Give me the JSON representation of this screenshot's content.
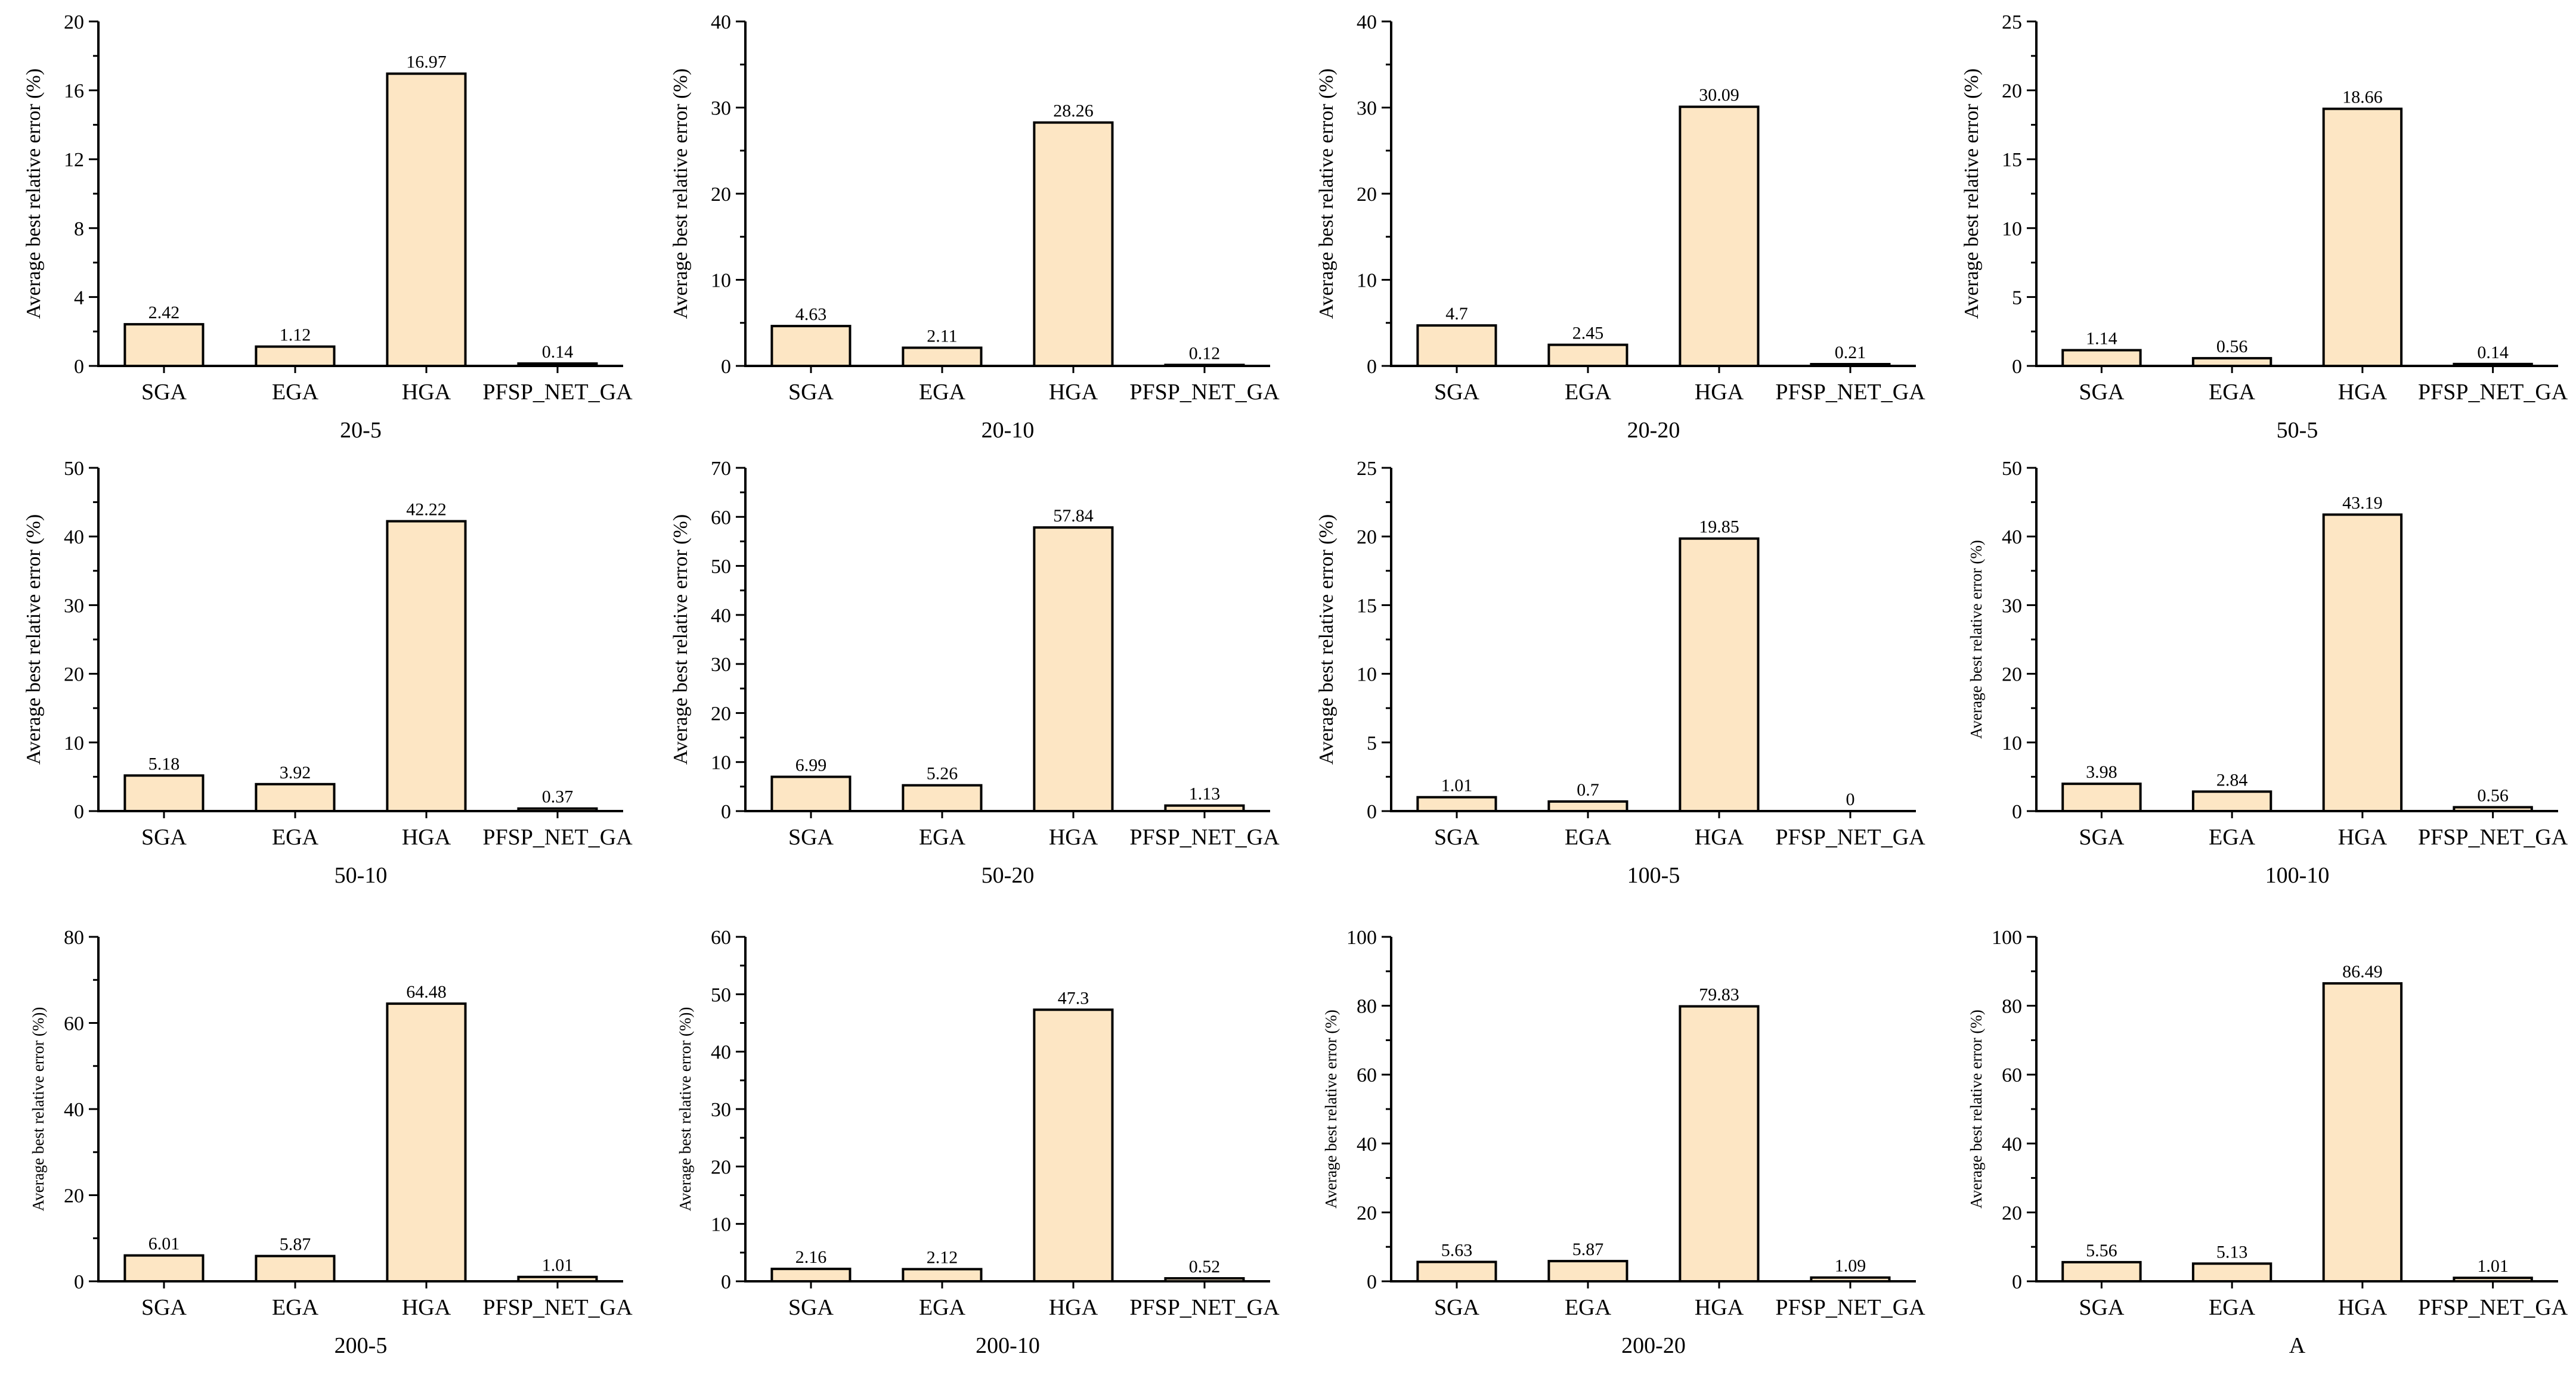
{
  "chart_data": [
    {
      "type": "bar",
      "title": "",
      "xlabel": "20-5",
      "ylabel": "Average best relative error (%)",
      "categories": [
        "SGA",
        "EGA",
        "HGA",
        "PFSP_NET_GA"
      ],
      "values": [
        2.42,
        1.12,
        16.97,
        0.14
      ],
      "value_labels": [
        "2.42",
        "1.12",
        "16.97",
        "0.14"
      ],
      "ylim": [
        0,
        20
      ],
      "yticks": [
        0,
        4,
        8,
        12,
        16,
        20
      ]
    },
    {
      "type": "bar",
      "title": "",
      "xlabel": "20-10",
      "ylabel": "Average best relative error (%)",
      "categories": [
        "SGA",
        "EGA",
        "HGA",
        "PFSP_NET_GA"
      ],
      "values": [
        4.63,
        2.11,
        28.26,
        0.12
      ],
      "value_labels": [
        "4.63",
        "2.11",
        "28.26",
        "0.12"
      ],
      "ylim": [
        0,
        40
      ],
      "yticks": [
        0,
        10,
        20,
        30,
        40
      ]
    },
    {
      "type": "bar",
      "title": "",
      "xlabel": "20-20",
      "ylabel": "Average best relative error (%)",
      "categories": [
        "SGA",
        "EGA",
        "HGA",
        "PFSP_NET_GA"
      ],
      "values": [
        4.7,
        2.45,
        30.09,
        0.21
      ],
      "value_labels": [
        "4.7",
        "2.45",
        "30.09",
        "0.21"
      ],
      "ylim": [
        0,
        40
      ],
      "yticks": [
        0,
        10,
        20,
        30,
        40
      ]
    },
    {
      "type": "bar",
      "title": "",
      "xlabel": "50-5",
      "ylabel": "Average best relative error (%)",
      "categories": [
        "SGA",
        "EGA",
        "HGA",
        "PFSP_NET_GA"
      ],
      "values": [
        1.14,
        0.56,
        18.66,
        0.14
      ],
      "value_labels": [
        "1.14",
        "0.56",
        "18.66",
        "0.14"
      ],
      "ylim": [
        0,
        25
      ],
      "yticks": [
        0,
        5,
        10,
        15,
        20,
        25
      ]
    },
    {
      "type": "bar",
      "title": "",
      "xlabel": "50-10",
      "ylabel": "Average best relative error (%)",
      "categories": [
        "SGA",
        "EGA",
        "HGA",
        "PFSP_NET_GA"
      ],
      "values": [
        5.18,
        3.92,
        42.22,
        0.37
      ],
      "value_labels": [
        "5.18",
        "3.92",
        "42.22",
        "0.37"
      ],
      "ylim": [
        0,
        50
      ],
      "yticks": [
        0,
        10,
        20,
        30,
        40,
        50
      ]
    },
    {
      "type": "bar",
      "title": "",
      "xlabel": "50-20",
      "ylabel": "Average best relative error (%)",
      "categories": [
        "SGA",
        "EGA",
        "HGA",
        "PFSP_NET_GA"
      ],
      "values": [
        6.99,
        5.26,
        57.84,
        1.13
      ],
      "value_labels": [
        "6.99",
        "5.26",
        "57.84",
        "1.13"
      ],
      "ylim": [
        0,
        70
      ],
      "yticks": [
        0,
        10,
        20,
        30,
        40,
        50,
        60,
        70
      ]
    },
    {
      "type": "bar",
      "title": "",
      "xlabel": "100-5",
      "ylabel": "Average best relative error (%)",
      "categories": [
        "SGA",
        "EGA",
        "HGA",
        "PFSP_NET_GA"
      ],
      "values": [
        1.01,
        0.7,
        19.85,
        0
      ],
      "value_labels": [
        "1.01",
        "0.7",
        "19.85",
        "0"
      ],
      "ylim": [
        0,
        25
      ],
      "yticks": [
        0,
        5,
        10,
        15,
        20,
        25
      ]
    },
    {
      "type": "bar",
      "title": "",
      "xlabel": "100-10",
      "ylabel": "Average best relative error (%)",
      "categories": [
        "SGA",
        "EGA",
        "HGA",
        "PFSP_NET_GA"
      ],
      "values": [
        3.98,
        2.84,
        43.19,
        0.56
      ],
      "value_labels": [
        "3.98",
        "2.84",
        "43.19",
        "0.56"
      ],
      "ylim": [
        0,
        50
      ],
      "yticks": [
        0,
        10,
        20,
        30,
        40,
        50
      ]
    },
    {
      "type": "bar",
      "title": "",
      "xlabel": "200-5",
      "ylabel": "Average best relative error (%))",
      "categories": [
        "SGA",
        "EGA",
        "HGA",
        "PFSP_NET_GA"
      ],
      "values": [
        6.01,
        5.87,
        64.48,
        1.01
      ],
      "value_labels": [
        "6.01",
        "5.87",
        "64.48",
        "1.01"
      ],
      "ylim": [
        0,
        80
      ],
      "yticks": [
        0,
        20,
        40,
        60,
        80
      ]
    },
    {
      "type": "bar",
      "title": "",
      "xlabel": "200-10",
      "ylabel": "Average best relative error (%))",
      "categories": [
        "SGA",
        "EGA",
        "HGA",
        "PFSP_NET_GA"
      ],
      "values": [
        2.16,
        2.12,
        47.3,
        0.52
      ],
      "value_labels": [
        "2.16",
        "2.12",
        "47.3",
        "0.52"
      ],
      "ylim": [
        0,
        60
      ],
      "yticks": [
        0,
        10,
        20,
        30,
        40,
        50,
        60
      ]
    },
    {
      "type": "bar",
      "title": "",
      "xlabel": "200-20",
      "ylabel": "Average best relative error (%)",
      "categories": [
        "SGA",
        "EGA",
        "HGA",
        "PFSP_NET_GA"
      ],
      "values": [
        5.63,
        5.87,
        79.83,
        1.09
      ],
      "value_labels": [
        "5.63",
        "5.87",
        "79.83",
        "1.09"
      ],
      "ylim": [
        0,
        100
      ],
      "yticks": [
        0,
        20,
        40,
        60,
        80,
        100
      ]
    },
    {
      "type": "bar",
      "title": "",
      "xlabel": "A",
      "ylabel": "Average best relative error (%)",
      "categories": [
        "SGA",
        "EGA",
        "HGA",
        "PFSP_NET_GA"
      ],
      "values": [
        5.56,
        5.13,
        86.49,
        1.01
      ],
      "value_labels": [
        "5.56",
        "5.13",
        "86.49",
        "1.01"
      ],
      "ylim": [
        0,
        100
      ],
      "yticks": [
        0,
        20,
        40,
        60,
        80,
        100
      ]
    }
  ]
}
